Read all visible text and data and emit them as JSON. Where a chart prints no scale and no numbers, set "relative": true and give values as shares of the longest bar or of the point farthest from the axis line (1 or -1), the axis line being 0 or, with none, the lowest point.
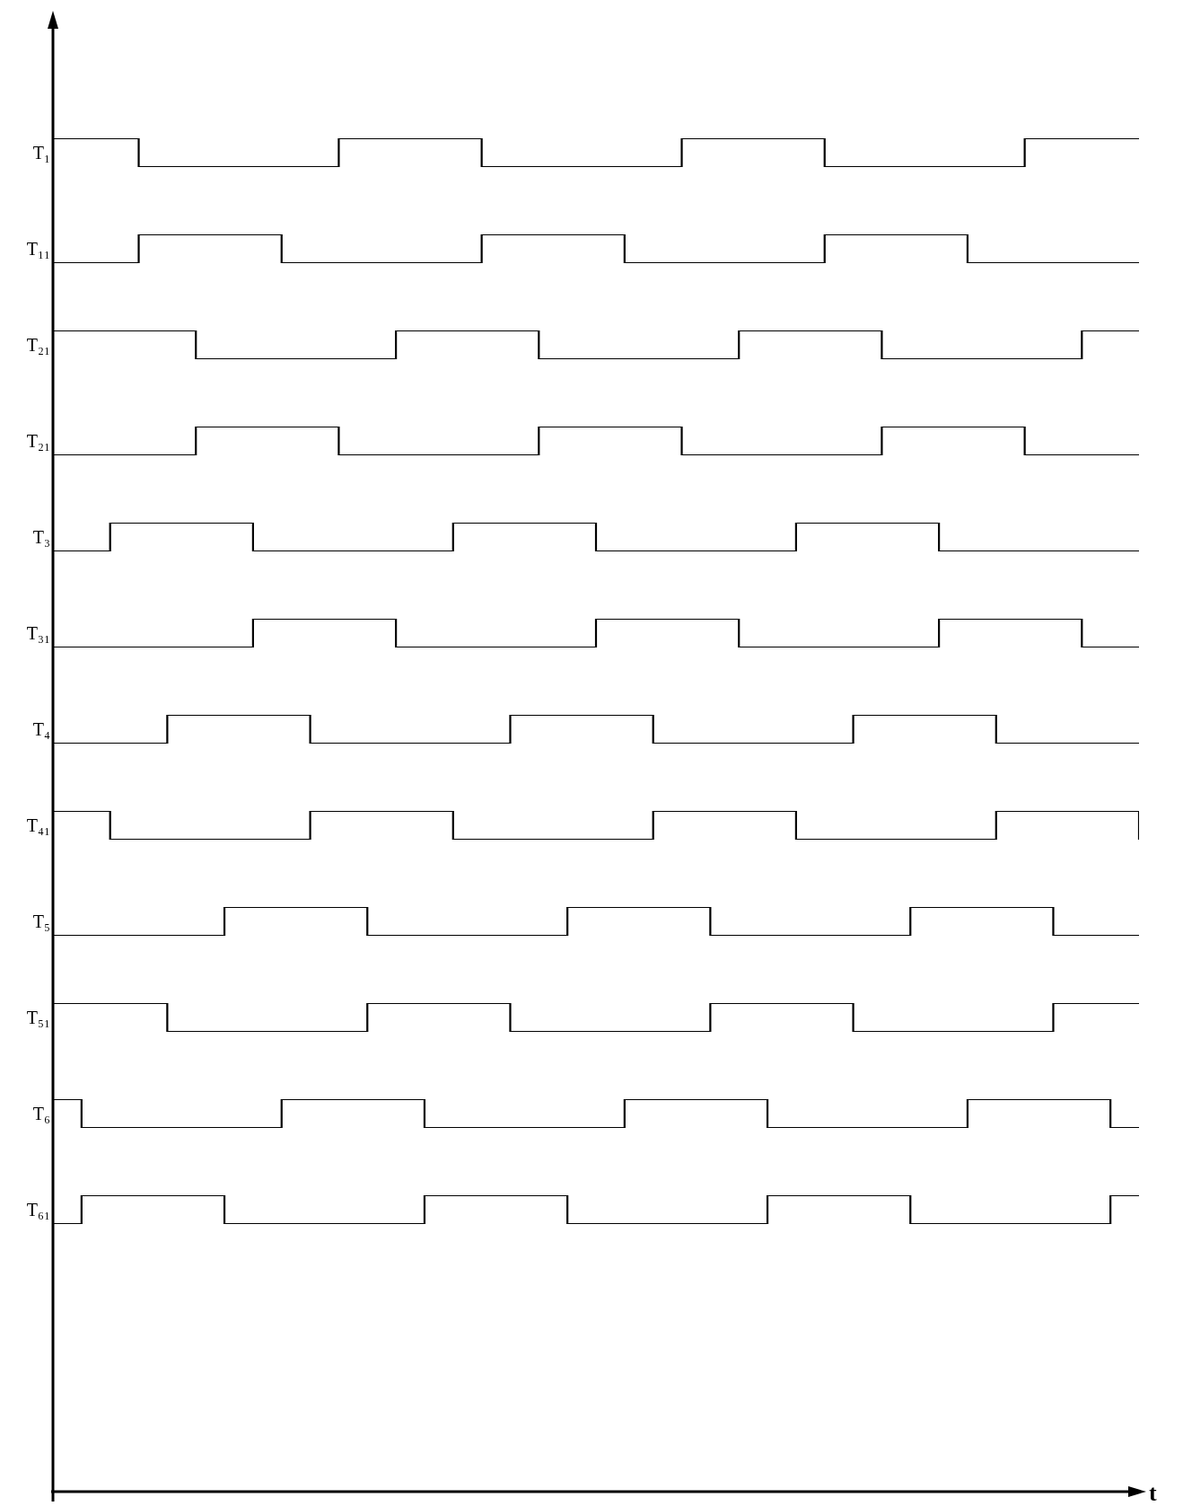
{
  "chart_data": [
    {
      "type": "step",
      "ylabel": "T₁",
      "relative": true,
      "tick_labels": false,
      "color": "#000000",
      "categories": [
        null,
        null,
        null,
        null,
        null,
        null,
        null,
        null,
        null,
        null,
        null,
        null,
        null,
        null,
        null,
        null,
        null,
        null,
        null,
        null,
        null,
        null,
        null,
        null,
        null,
        null,
        null,
        null,
        null,
        null,
        null,
        null,
        null,
        null,
        null,
        null,
        null,
        null,
        null
      ],
      "values": [
        1,
        1,
        1,
        0,
        0,
        0,
        0,
        0,
        0,
        0,
        1,
        1,
        1,
        1,
        1,
        0,
        0,
        0,
        0,
        0,
        0,
        0,
        1,
        1,
        1,
        1,
        1,
        0,
        0,
        0,
        0,
        0,
        0,
        0,
        1,
        1,
        1,
        1,
        1
      ]
    },
    {
      "type": "step",
      "ylabel": "T₁₁",
      "relative": true,
      "tick_labels": false,
      "color": "#000000",
      "categories": [
        null,
        null,
        null,
        null,
        null,
        null,
        null,
        null,
        null,
        null,
        null,
        null,
        null,
        null,
        null,
        null,
        null,
        null,
        null,
        null,
        null,
        null,
        null,
        null,
        null,
        null,
        null,
        null,
        null,
        null,
        null,
        null,
        null,
        null,
        null,
        null,
        null,
        null,
        null
      ],
      "values": [
        0,
        0,
        0,
        1,
        1,
        1,
        1,
        1,
        0,
        0,
        0,
        0,
        0,
        0,
        0,
        1,
        1,
        1,
        1,
        1,
        0,
        0,
        0,
        0,
        0,
        0,
        0,
        1,
        1,
        1,
        1,
        1,
        0,
        0,
        0,
        0,
        0,
        0,
        0
      ]
    },
    {
      "type": "step",
      "ylabel": "T₂₁",
      "relative": true,
      "tick_labels": false,
      "color": "#000000",
      "categories": [
        null,
        null,
        null,
        null,
        null,
        null,
        null,
        null,
        null,
        null,
        null,
        null,
        null,
        null,
        null,
        null,
        null,
        null,
        null,
        null,
        null,
        null,
        null,
        null,
        null,
        null,
        null,
        null,
        null,
        null,
        null,
        null,
        null,
        null,
        null,
        null,
        null,
        null,
        null
      ],
      "values": [
        1,
        1,
        1,
        1,
        1,
        0,
        0,
        0,
        0,
        0,
        0,
        0,
        1,
        1,
        1,
        1,
        1,
        0,
        0,
        0,
        0,
        0,
        0,
        0,
        1,
        1,
        1,
        1,
        1,
        0,
        0,
        0,
        0,
        0,
        0,
        0,
        1,
        1,
        1
      ]
    },
    {
      "type": "step",
      "ylabel": "T₂₁",
      "relative": true,
      "tick_labels": false,
      "color": "#000000",
      "categories": [
        null,
        null,
        null,
        null,
        null,
        null,
        null,
        null,
        null,
        null,
        null,
        null,
        null,
        null,
        null,
        null,
        null,
        null,
        null,
        null,
        null,
        null,
        null,
        null,
        null,
        null,
        null,
        null,
        null,
        null,
        null,
        null,
        null,
        null,
        null,
        null,
        null,
        null,
        null
      ],
      "values": [
        0,
        0,
        0,
        0,
        0,
        1,
        1,
        1,
        1,
        1,
        0,
        0,
        0,
        0,
        0,
        0,
        0,
        1,
        1,
        1,
        1,
        1,
        0,
        0,
        0,
        0,
        0,
        0,
        0,
        1,
        1,
        1,
        1,
        1,
        0,
        0,
        0,
        0,
        0
      ]
    },
    {
      "type": "step",
      "ylabel": "T₃",
      "relative": true,
      "tick_labels": false,
      "color": "#000000",
      "categories": [
        null,
        null,
        null,
        null,
        null,
        null,
        null,
        null,
        null,
        null,
        null,
        null,
        null,
        null,
        null,
        null,
        null,
        null,
        null,
        null,
        null,
        null,
        null,
        null,
        null,
        null,
        null,
        null,
        null,
        null,
        null,
        null,
        null,
        null,
        null,
        null,
        null,
        null,
        null
      ],
      "values": [
        0,
        0,
        1,
        1,
        1,
        1,
        1,
        0,
        0,
        0,
        0,
        0,
        0,
        0,
        1,
        1,
        1,
        1,
        1,
        0,
        0,
        0,
        0,
        0,
        0,
        0,
        1,
        1,
        1,
        1,
        1,
        0,
        0,
        0,
        0,
        0,
        0,
        0,
        0
      ]
    },
    {
      "type": "step",
      "ylabel": "T₃₁",
      "relative": true,
      "tick_labels": false,
      "color": "#000000",
      "categories": [
        null,
        null,
        null,
        null,
        null,
        null,
        null,
        null,
        null,
        null,
        null,
        null,
        null,
        null,
        null,
        null,
        null,
        null,
        null,
        null,
        null,
        null,
        null,
        null,
        null,
        null,
        null,
        null,
        null,
        null,
        null,
        null,
        null,
        null,
        null,
        null,
        null,
        null,
        null
      ],
      "values": [
        0,
        0,
        0,
        0,
        0,
        0,
        0,
        1,
        1,
        1,
        1,
        1,
        0,
        0,
        0,
        0,
        0,
        0,
        0,
        1,
        1,
        1,
        1,
        1,
        0,
        0,
        0,
        0,
        0,
        0,
        0,
        1,
        1,
        1,
        1,
        1,
        0,
        0,
        0
      ]
    },
    {
      "type": "step",
      "ylabel": "T₄",
      "relative": true,
      "tick_labels": false,
      "color": "#000000",
      "categories": [
        null,
        null,
        null,
        null,
        null,
        null,
        null,
        null,
        null,
        null,
        null,
        null,
        null,
        null,
        null,
        null,
        null,
        null,
        null,
        null,
        null,
        null,
        null,
        null,
        null,
        null,
        null,
        null,
        null,
        null,
        null,
        null,
        null,
        null,
        null,
        null,
        null,
        null,
        null
      ],
      "values": [
        0,
        0,
        0,
        0,
        1,
        1,
        1,
        1,
        1,
        0,
        0,
        0,
        0,
        0,
        0,
        0,
        1,
        1,
        1,
        1,
        1,
        0,
        0,
        0,
        0,
        0,
        0,
        0,
        1,
        1,
        1,
        1,
        1,
        0,
        0,
        0,
        0,
        0,
        0
      ]
    },
    {
      "type": "step",
      "ylabel": "T₄₁",
      "relative": true,
      "tick_labels": false,
      "color": "#000000",
      "categories": [
        null,
        null,
        null,
        null,
        null,
        null,
        null,
        null,
        null,
        null,
        null,
        null,
        null,
        null,
        null,
        null,
        null,
        null,
        null,
        null,
        null,
        null,
        null,
        null,
        null,
        null,
        null,
        null,
        null,
        null,
        null,
        null,
        null,
        null,
        null,
        null,
        null,
        null,
        null
      ],
      "values": [
        1,
        1,
        0,
        0,
        0,
        0,
        0,
        0,
        0,
        1,
        1,
        1,
        1,
        1,
        0,
        0,
        0,
        0,
        0,
        0,
        0,
        1,
        1,
        1,
        1,
        1,
        0,
        0,
        0,
        0,
        0,
        0,
        0,
        1,
        1,
        1,
        1,
        1,
        0
      ]
    },
    {
      "type": "step",
      "ylabel": "T₅",
      "relative": true,
      "tick_labels": false,
      "color": "#000000",
      "categories": [
        null,
        null,
        null,
        null,
        null,
        null,
        null,
        null,
        null,
        null,
        null,
        null,
        null,
        null,
        null,
        null,
        null,
        null,
        null,
        null,
        null,
        null,
        null,
        null,
        null,
        null,
        null,
        null,
        null,
        null,
        null,
        null,
        null,
        null,
        null,
        null,
        null,
        null,
        null
      ],
      "values": [
        0,
        0,
        0,
        0,
        0,
        0,
        1,
        1,
        1,
        1,
        1,
        0,
        0,
        0,
        0,
        0,
        0,
        0,
        1,
        1,
        1,
        1,
        1,
        0,
        0,
        0,
        0,
        0,
        0,
        0,
        1,
        1,
        1,
        1,
        1,
        0,
        0,
        0,
        0
      ]
    },
    {
      "type": "step",
      "ylabel": "T₅₁",
      "relative": true,
      "tick_labels": false,
      "color": "#000000",
      "categories": [
        null,
        null,
        null,
        null,
        null,
        null,
        null,
        null,
        null,
        null,
        null,
        null,
        null,
        null,
        null,
        null,
        null,
        null,
        null,
        null,
        null,
        null,
        null,
        null,
        null,
        null,
        null,
        null,
        null,
        null,
        null,
        null,
        null,
        null,
        null,
        null,
        null,
        null,
        null
      ],
      "values": [
        1,
        1,
        1,
        1,
        0,
        0,
        0,
        0,
        0,
        0,
        0,
        1,
        1,
        1,
        1,
        1,
        0,
        0,
        0,
        0,
        0,
        0,
        0,
        1,
        1,
        1,
        1,
        1,
        0,
        0,
        0,
        0,
        0,
        0,
        0,
        1,
        1,
        1,
        1
      ]
    },
    {
      "type": "step",
      "ylabel": "T₆",
      "relative": true,
      "tick_labels": false,
      "color": "#000000",
      "categories": [
        null,
        null,
        null,
        null,
        null,
        null,
        null,
        null,
        null,
        null,
        null,
        null,
        null,
        null,
        null,
        null,
        null,
        null,
        null,
        null,
        null,
        null,
        null,
        null,
        null,
        null,
        null,
        null,
        null,
        null,
        null,
        null,
        null,
        null,
        null,
        null,
        null,
        null,
        null
      ],
      "values": [
        1,
        0,
        0,
        0,
        0,
        0,
        0,
        0,
        1,
        1,
        1,
        1,
        1,
        0,
        0,
        0,
        0,
        0,
        0,
        0,
        1,
        1,
        1,
        1,
        1,
        0,
        0,
        0,
        0,
        0,
        0,
        0,
        1,
        1,
        1,
        1,
        1,
        0,
        0
      ]
    },
    {
      "type": "step",
      "ylabel": "T₆₁",
      "xlabel": "t",
      "relative": true,
      "tick_labels": false,
      "color": "#000000",
      "categories": [
        null,
        null,
        null,
        null,
        null,
        null,
        null,
        null,
        null,
        null,
        null,
        null,
        null,
        null,
        null,
        null,
        null,
        null,
        null,
        null,
        null,
        null,
        null,
        null,
        null,
        null,
        null,
        null,
        null,
        null,
        null,
        null,
        null,
        null,
        null,
        null,
        null,
        null,
        null
      ],
      "values": [
        0,
        1,
        1,
        1,
        1,
        1,
        0,
        0,
        0,
        0,
        0,
        0,
        0,
        1,
        1,
        1,
        1,
        1,
        0,
        0,
        0,
        0,
        0,
        0,
        0,
        1,
        1,
        1,
        1,
        1,
        0,
        0,
        0,
        0,
        0,
        0,
        0,
        1,
        1
      ]
    }
  ]
}
